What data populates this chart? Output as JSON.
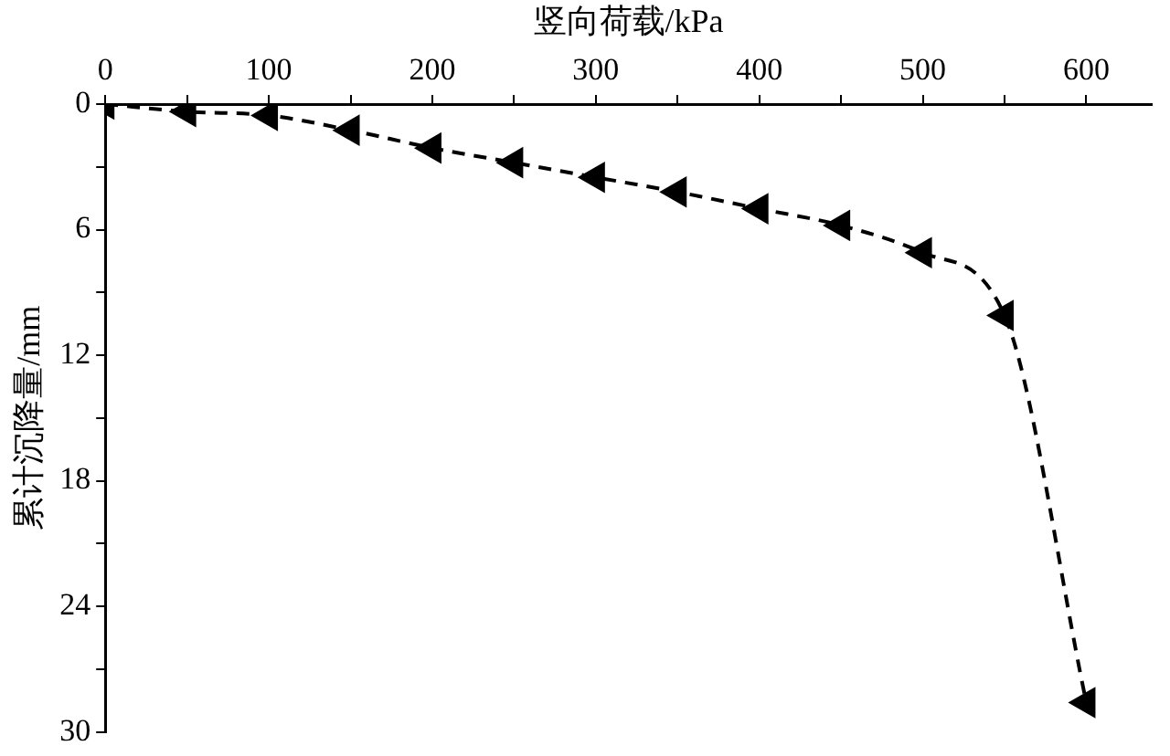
{
  "chart_data": {
    "type": "line",
    "xlabel": "竖向荷载/kPa",
    "ylabel": "累计沉降量/mm",
    "x": [
      0,
      50,
      100,
      150,
      200,
      250,
      300,
      350,
      400,
      450,
      500,
      550,
      600
    ],
    "series": [
      {
        "color": "#000000",
        "values": [
          0,
          0.36,
          0.54,
          1.25,
          2.1,
          2.8,
          3.5,
          4.2,
          5.0,
          5.8,
          7.1,
          10.1,
          28.6
        ]
      }
    ],
    "xlim": [
      0,
      640
    ],
    "ylim": [
      30,
      0
    ],
    "xticks": [
      0,
      {
        "value": 50,
        "label": null
      },
      100,
      {
        "value": 150,
        "label": null
      },
      200,
      {
        "value": 250,
        "label": null
      },
      300,
      {
        "value": 350,
        "label": null
      },
      400,
      {
        "value": 450,
        "label": null
      },
      500,
      {
        "value": 550,
        "label": null
      },
      600
    ],
    "yticks": [
      0,
      {
        "value": 3,
        "label": null
      },
      6,
      {
        "value": 9,
        "label": null
      },
      12,
      {
        "value": 15,
        "label": null
      },
      18,
      {
        "value": 21,
        "label": null
      },
      24,
      {
        "value": 27,
        "label": null
      },
      30
    ],
    "grid": false,
    "legend": false,
    "marker": "triangle",
    "line_style": "dashed"
  }
}
